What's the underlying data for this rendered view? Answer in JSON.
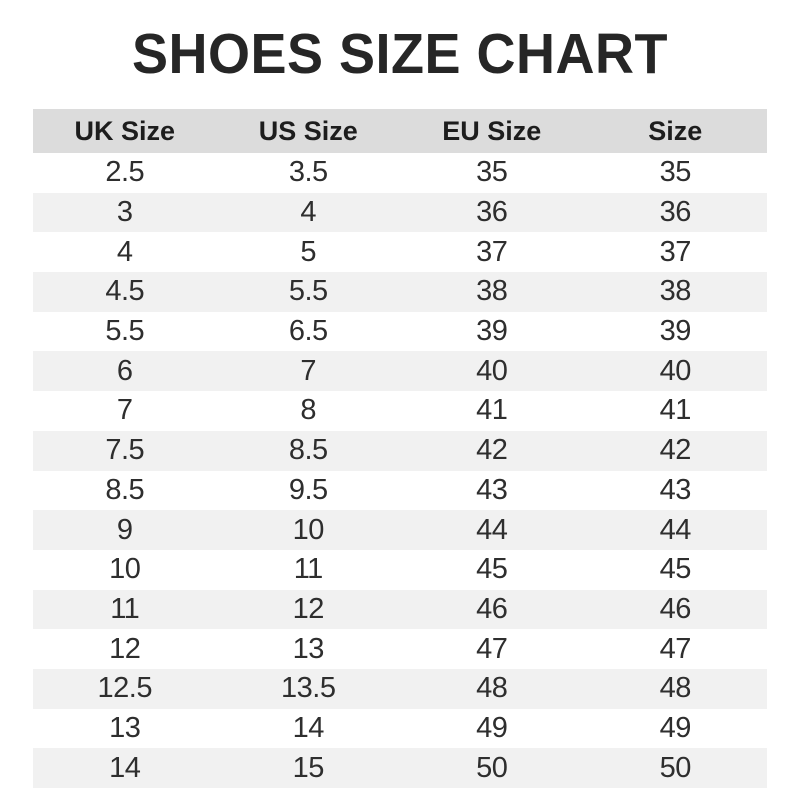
{
  "title": "SHOES SIZE CHART",
  "colors": {
    "title_color": "#262626",
    "header_bg": "#dcdcdc",
    "header_text": "#1d1d1d",
    "cell_text": "#2e2e2e",
    "stripe_bg": "#f1f1f1"
  },
  "chart_data": {
    "type": "table",
    "title": "SHOES SIZE CHART",
    "columns": [
      "UK Size",
      "US Size",
      "EU Size",
      "Size"
    ],
    "rows": [
      [
        "2.5",
        "3.5",
        "35",
        "35"
      ],
      [
        "3",
        "4",
        "36",
        "36"
      ],
      [
        "4",
        "5",
        "37",
        "37"
      ],
      [
        "4.5",
        "5.5",
        "38",
        "38"
      ],
      [
        "5.5",
        "6.5",
        "39",
        "39"
      ],
      [
        "6",
        "7",
        "40",
        "40"
      ],
      [
        "7",
        "8",
        "41",
        "41"
      ],
      [
        "7.5",
        "8.5",
        "42",
        "42"
      ],
      [
        "8.5",
        "9.5",
        "43",
        "43"
      ],
      [
        "9",
        "10",
        "44",
        "44"
      ],
      [
        "10",
        "11",
        "45",
        "45"
      ],
      [
        "11",
        "12",
        "46",
        "46"
      ],
      [
        "12",
        "13",
        "47",
        "47"
      ],
      [
        "12.5",
        "13.5",
        "48",
        "48"
      ],
      [
        "13",
        "14",
        "49",
        "49"
      ],
      [
        "14",
        "15",
        "50",
        "50"
      ]
    ],
    "layout": {
      "striped": true,
      "stripe_pattern": "even-rows-gray",
      "column_alignment": "center"
    }
  }
}
